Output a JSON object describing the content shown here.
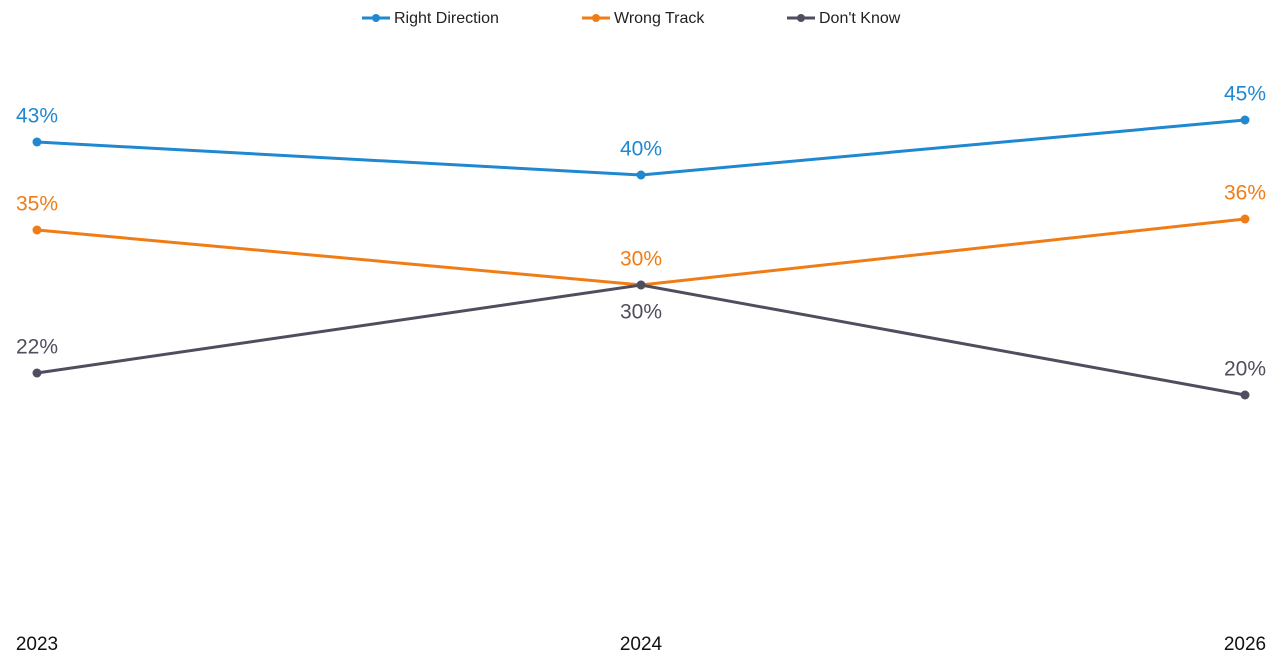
{
  "chart_data": {
    "type": "line",
    "categories": [
      "2023",
      "2024",
      "2026"
    ],
    "series": [
      {
        "name": "Right Direction",
        "color": "#1f88d1",
        "values": [
          43,
          40,
          45
        ],
        "value_labels": [
          "43%",
          "40%",
          "45%"
        ]
      },
      {
        "name": "Wrong Track",
        "color": "#f07c16",
        "values": [
          35,
          30,
          36
        ],
        "value_labels": [
          "35%",
          "30%",
          "36%"
        ]
      },
      {
        "name": "Don't Know",
        "color": "#4f4e5e",
        "values": [
          22,
          30,
          20
        ],
        "value_labels": [
          "22%",
          "30%",
          "20%"
        ]
      }
    ],
    "ylim": [
      0,
      50
    ],
    "legend": "top"
  }
}
